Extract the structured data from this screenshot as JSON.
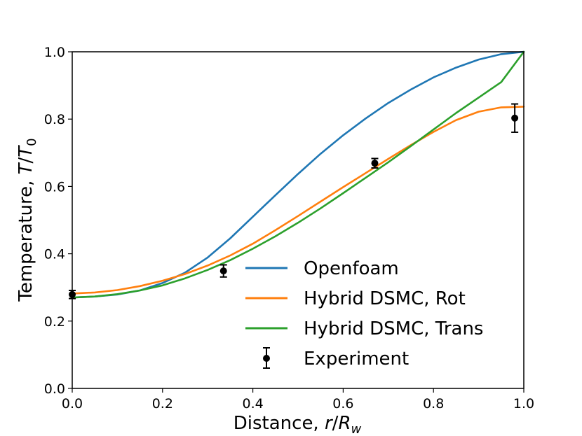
{
  "chart_data": {
    "type": "line",
    "title": "",
    "xlabel": {
      "prefix": "Distance, ",
      "var": "r",
      "slash": "/",
      "var2": "R",
      "sub": "w"
    },
    "ylabel": {
      "prefix": "Temperature, ",
      "var": "T",
      "slash": "/",
      "var2": "T",
      "sub": "0"
    },
    "xlim": [
      0.0,
      1.0
    ],
    "ylim": [
      0.0,
      1.0
    ],
    "xticks": [
      0.0,
      0.2,
      0.4,
      0.6,
      0.8,
      1.0
    ],
    "yticks": [
      0.0,
      0.2,
      0.4,
      0.6,
      0.8,
      1.0
    ],
    "xtick_labels": [
      "0.0",
      "0.2",
      "0.4",
      "0.6",
      "0.8",
      "1.0"
    ],
    "ytick_labels": [
      "0.0",
      "0.2",
      "0.4",
      "0.6",
      "0.8",
      "1.0"
    ],
    "grid": false,
    "legend_position": "lower-right",
    "series": [
      {
        "name": "Openfoam",
        "color": "#1f77b4",
        "x": [
          0.0,
          0.05,
          0.1,
          0.15,
          0.2,
          0.25,
          0.3,
          0.35,
          0.4,
          0.45,
          0.5,
          0.55,
          0.6,
          0.65,
          0.7,
          0.75,
          0.8,
          0.85,
          0.9,
          0.95,
          1.0
        ],
        "y": [
          0.27,
          0.273,
          0.279,
          0.291,
          0.313,
          0.344,
          0.389,
          0.446,
          0.51,
          0.574,
          0.637,
          0.697,
          0.752,
          0.802,
          0.848,
          0.888,
          0.924,
          0.953,
          0.977,
          0.993,
          1.0
        ]
      },
      {
        "name": "Hybrid DSMC, Rot",
        "color": "#ff7f0e",
        "x": [
          0.0,
          0.05,
          0.1,
          0.15,
          0.2,
          0.25,
          0.3,
          0.35,
          0.4,
          0.45,
          0.5,
          0.55,
          0.6,
          0.65,
          0.7,
          0.75,
          0.8,
          0.85,
          0.9,
          0.95,
          1.0
        ],
        "y": [
          0.282,
          0.285,
          0.292,
          0.304,
          0.32,
          0.34,
          0.365,
          0.395,
          0.43,
          0.47,
          0.512,
          0.555,
          0.598,
          0.64,
          0.682,
          0.723,
          0.762,
          0.797,
          0.822,
          0.835,
          0.837
        ]
      },
      {
        "name": "Hybrid DSMC, Trans",
        "color": "#2ca02c",
        "x": [
          0.0,
          0.05,
          0.1,
          0.15,
          0.2,
          0.25,
          0.3,
          0.35,
          0.4,
          0.45,
          0.5,
          0.55,
          0.6,
          0.65,
          0.7,
          0.75,
          0.8,
          0.85,
          0.9,
          0.95,
          1.0
        ],
        "y": [
          0.27,
          0.273,
          0.28,
          0.291,
          0.306,
          0.327,
          0.352,
          0.381,
          0.415,
          0.452,
          0.492,
          0.535,
          0.58,
          0.626,
          0.672,
          0.72,
          0.769,
          0.818,
          0.864,
          0.91,
          1.0
        ]
      }
    ],
    "experiment": {
      "name": "Experiment",
      "color": "#000000",
      "x": [
        0.0,
        0.335,
        0.67,
        0.98
      ],
      "y": [
        0.279,
        0.349,
        0.669,
        0.803
      ],
      "yerr": [
        0.012,
        0.018,
        0.014,
        0.042
      ]
    }
  }
}
